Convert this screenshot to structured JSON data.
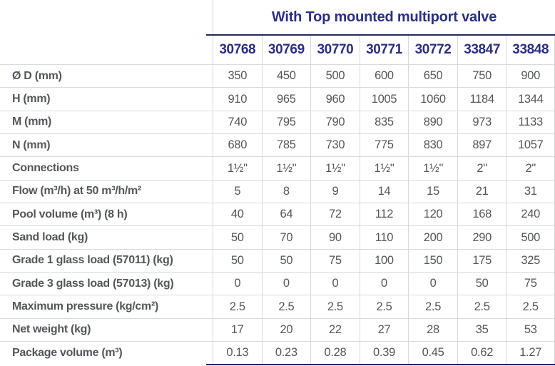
{
  "title": "With Top mounted multiport valve",
  "columns": [
    "30768",
    "30769",
    "30770",
    "30771",
    "30772",
    "33847",
    "33848"
  ],
  "rows": [
    {
      "label": "Ø D (mm)",
      "values": [
        "350",
        "450",
        "500",
        "600",
        "650",
        "750",
        "900"
      ]
    },
    {
      "label": "H (mm)",
      "values": [
        "910",
        "965",
        "960",
        "1005",
        "1060",
        "1184",
        "1344"
      ]
    },
    {
      "label": "M (mm)",
      "values": [
        "740",
        "795",
        "790",
        "835",
        "890",
        "973",
        "1133"
      ]
    },
    {
      "label": "N (mm)",
      "values": [
        "680",
        "785",
        "730",
        "775",
        "830",
        "897",
        "1057"
      ]
    },
    {
      "label": "Connections",
      "values": [
        "1½\"",
        "1½\"",
        "1½\"",
        "1½\"",
        "1½\"",
        "2\"",
        "2\""
      ]
    },
    {
      "label": "Flow (m³/h) at 50 m³/h/m²",
      "values": [
        "5",
        "8",
        "9",
        "14",
        "15",
        "21",
        "31"
      ]
    },
    {
      "label": "Pool volume (m³) (8 h)",
      "values": [
        "40",
        "64",
        "72",
        "112",
        "120",
        "168",
        "240"
      ]
    },
    {
      "label": "Sand load (kg)",
      "values": [
        "50",
        "70",
        "90",
        "110",
        "200",
        "290",
        "500"
      ]
    },
    {
      "label": "Grade 1 glass load (57011) (kg)",
      "values": [
        "50",
        "50",
        "75",
        "100",
        "150",
        "175",
        "325"
      ]
    },
    {
      "label": "Grade 3 glass load (57013) (kg)",
      "values": [
        "0",
        "0",
        "0",
        "0",
        "0",
        "50",
        "75"
      ]
    },
    {
      "label": "Maximum pressure (kg/cm²)",
      "values": [
        "2.5",
        "2.5",
        "2.5",
        "2.5",
        "2.5",
        "2.5",
        "2.5"
      ]
    },
    {
      "label": "Net weight (kg)",
      "values": [
        "17",
        "20",
        "22",
        "27",
        "28",
        "35",
        "53"
      ]
    },
    {
      "label": "Package volume (m³)",
      "values": [
        "0.13",
        "0.23",
        "0.28",
        "0.39",
        "0.45",
        "0.62",
        "1.27"
      ]
    }
  ],
  "colors": {
    "navy_text": "#2b2e83",
    "rule_navy": "#252a5f",
    "cell_text": "#54565a",
    "grid_line": "#d9d9da",
    "background": "#ffffff"
  }
}
